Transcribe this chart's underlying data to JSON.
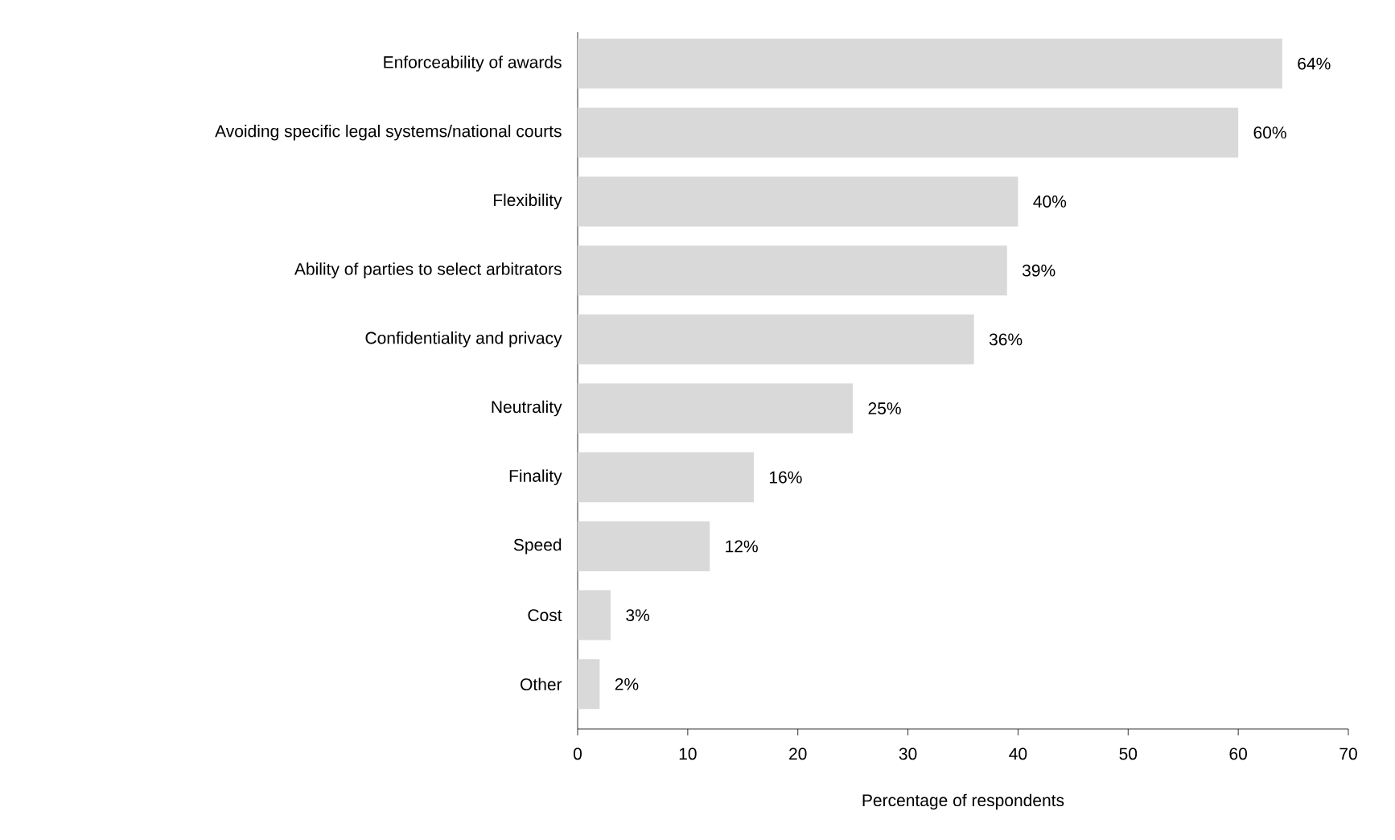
{
  "chart_data": {
    "type": "bar",
    "orientation": "horizontal",
    "xlabel": "Percentage of respondents",
    "categories": [
      "Enforceability of awards",
      "Avoiding specific legal systems/national courts",
      "Flexibility",
      "Ability of parties to select arbitrators",
      "Confidentiality and privacy",
      "Neutrality",
      "Finality",
      "Speed",
      "Cost",
      "Other"
    ],
    "values": [
      64,
      60,
      40,
      39,
      36,
      25,
      16,
      12,
      3,
      2
    ],
    "value_labels": [
      "64%",
      "60%",
      "40%",
      "39%",
      "36%",
      "25%",
      "16%",
      "12%",
      "3%",
      "2%"
    ],
    "color": "#d9d9d9",
    "xlim": [
      0,
      70
    ],
    "xticks": [
      0,
      10,
      20,
      30,
      40,
      50,
      60,
      70
    ]
  }
}
